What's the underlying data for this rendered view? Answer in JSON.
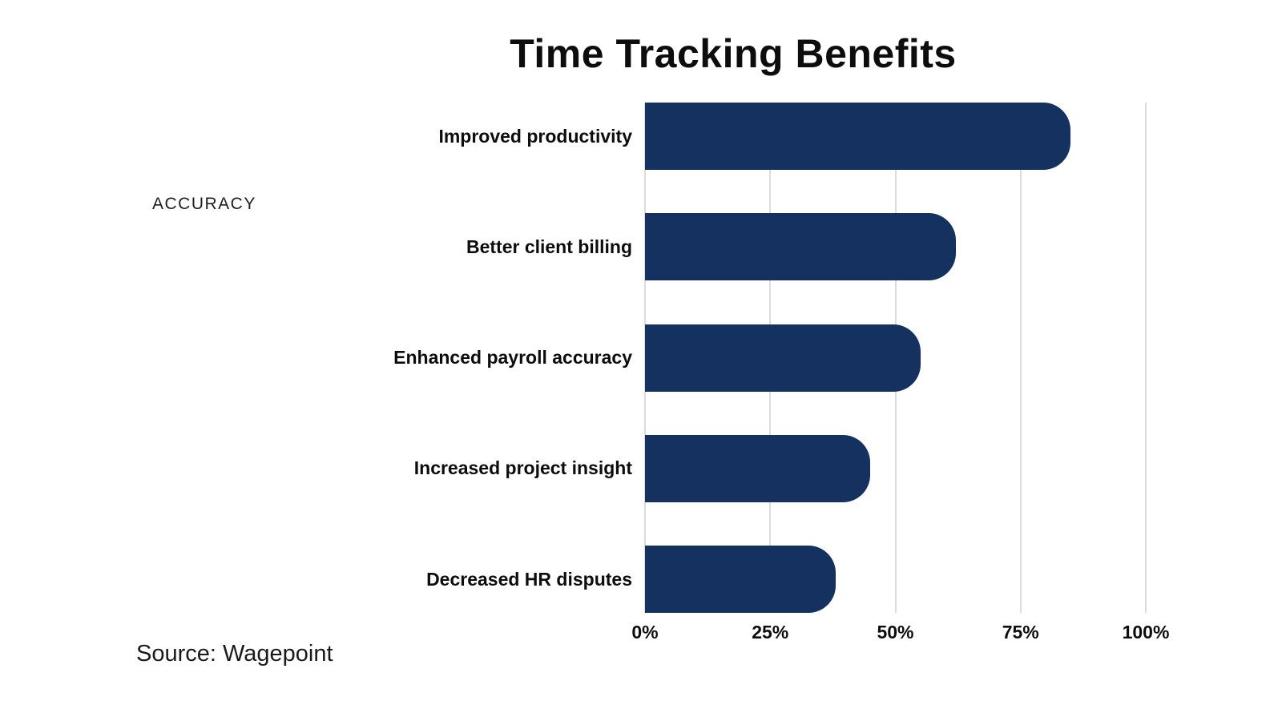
{
  "title": "Time Tracking Benefits",
  "side_label": "ACCURACY",
  "source": "Source: Wagepoint",
  "colors": {
    "bar": "#14315f",
    "gridline": "#dcdcdc",
    "text": "#0d0d0d"
  },
  "chart_data": {
    "type": "bar",
    "orientation": "horizontal",
    "title": "Time Tracking Benefits",
    "categories": [
      "Improved productivity",
      "Better client billing",
      "Enhanced payroll accuracy",
      "Increased project insight",
      "Decreased HR disputes"
    ],
    "values": [
      85,
      62,
      55,
      45,
      38
    ],
    "xlim": [
      0,
      100
    ],
    "x_ticks": [
      "0%",
      "25%",
      "50%",
      "75%",
      "100%"
    ],
    "x_tick_positions": [
      0,
      25,
      50,
      75,
      100
    ],
    "grid": "vertical",
    "legend": "none",
    "source": "Source: Wagepoint"
  }
}
